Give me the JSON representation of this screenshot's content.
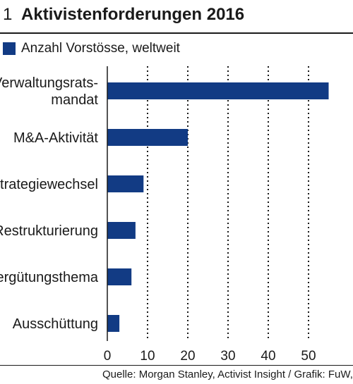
{
  "header": {
    "number": "1",
    "title": "Aktivistenforderungen 2016"
  },
  "legend": {
    "label": "Anzahl Vorstösse, weltweit"
  },
  "source": "Quelle: Morgan Stanley, Activist Insight / Grafik: FuW, sp",
  "colors": {
    "bar": "#123b84",
    "text": "#1a1a1a",
    "grid": "#1a1a1a"
  },
  "chart_data": {
    "type": "bar",
    "orientation": "horizontal",
    "categories": [
      [
        "Verwaltungsrats-",
        "mandat"
      ],
      [
        "M&A-Aktivität"
      ],
      [
        "Strategiewechsel"
      ],
      [
        "Restrukturierung"
      ],
      [
        "Vergütungsthema"
      ],
      [
        "Ausschüttung"
      ]
    ],
    "values": [
      55,
      20,
      9,
      7,
      6,
      3
    ],
    "xticks": [
      0,
      10,
      20,
      30,
      40,
      50
    ],
    "xlim": [
      0,
      60
    ],
    "grid": "vertical dotted",
    "legend_position": "top-left"
  }
}
